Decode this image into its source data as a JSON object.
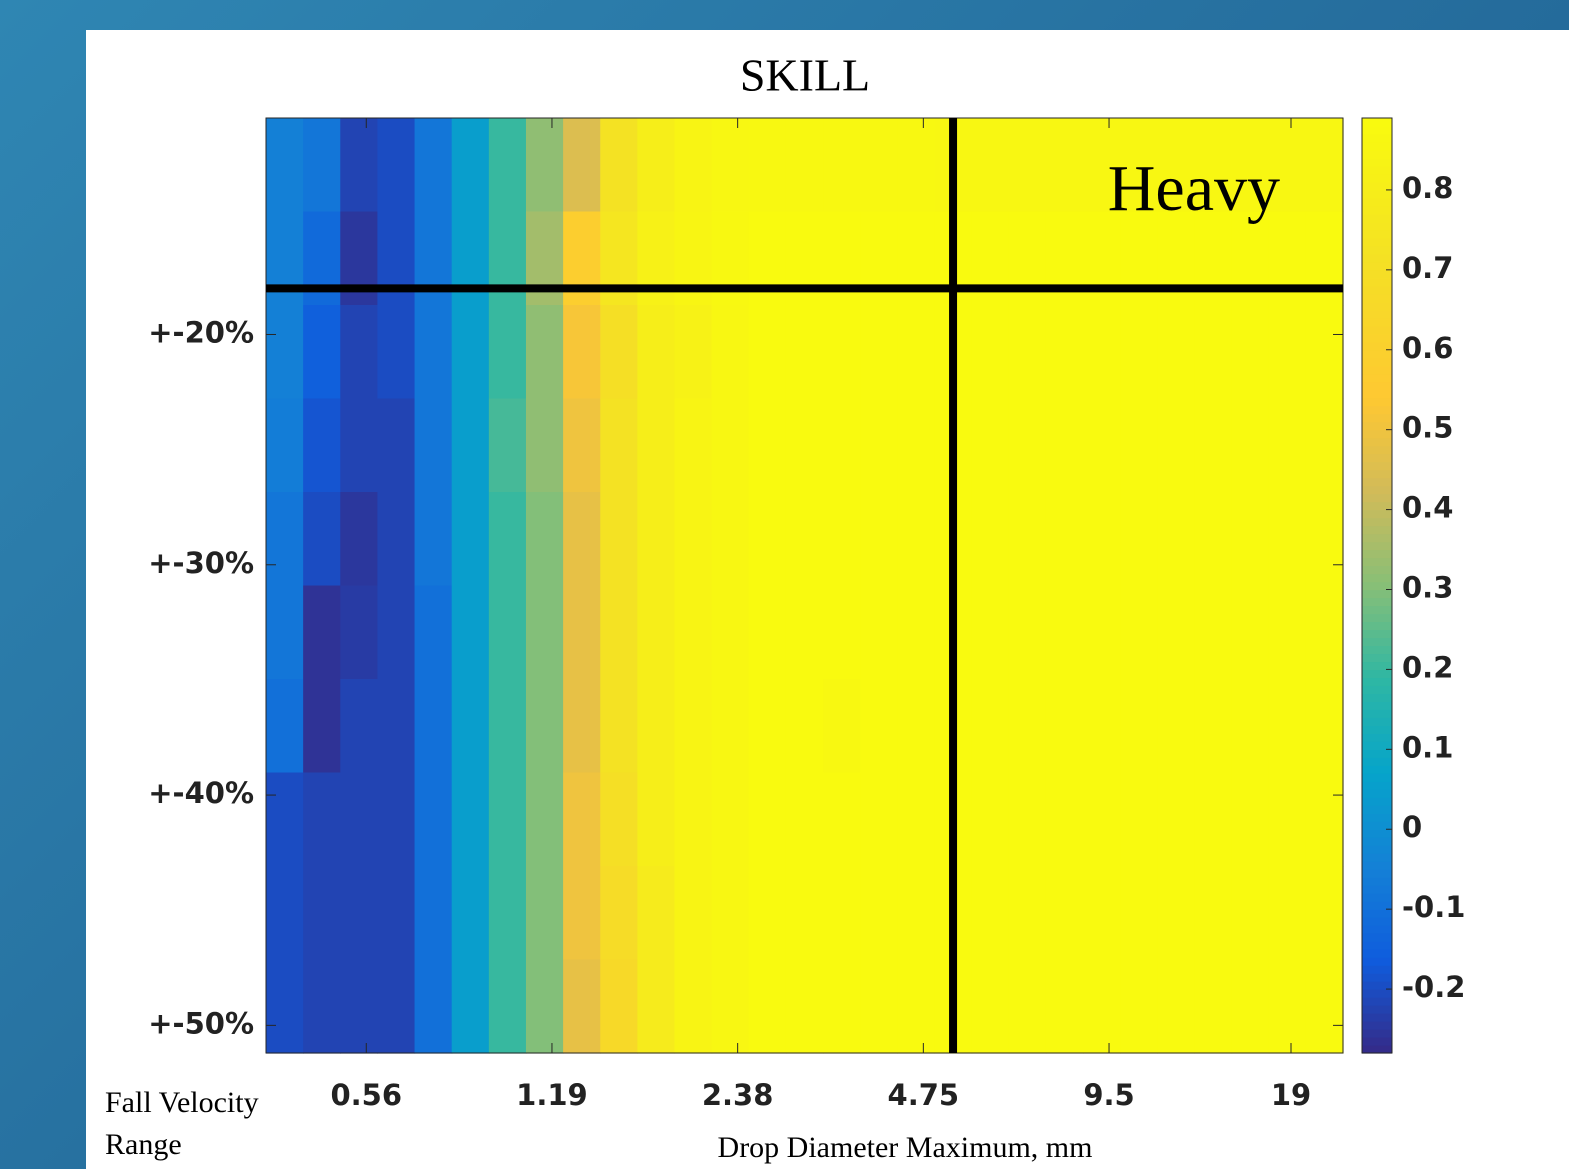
{
  "chart_data": {
    "type": "heatmap",
    "title": "SKILL",
    "annotation": "Heavy",
    "y_label": "Fall Velocity Range",
    "x_label": "Drop Diameter Maximum, mm",
    "colormap": "parula",
    "x": [
      1,
      2,
      3,
      4,
      5,
      6,
      7,
      8,
      9,
      10,
      11,
      12,
      13,
      14,
      15,
      16,
      17,
      18,
      19,
      20,
      21,
      22,
      23,
      24,
      25,
      26,
      27,
      28,
      29
    ],
    "y": [
      12.63,
      16.69,
      20.75,
      24.81,
      28.87,
      32.93,
      36.99,
      41.05,
      45.11,
      49.17
    ],
    "z": [
      [
        -0.05,
        -0.08,
        -0.22,
        -0.2,
        -0.08,
        0.05,
        0.2,
        0.32,
        0.45,
        0.72,
        0.8,
        0.84,
        0.86,
        0.87,
        0.87,
        0.87,
        0.87,
        0.87,
        0.86,
        0.86,
        0.86,
        0.86,
        0.86,
        0.86,
        0.86,
        0.86,
        0.86,
        0.86,
        0.86
      ],
      [
        -0.05,
        -0.12,
        -0.25,
        -0.2,
        -0.08,
        0.05,
        0.2,
        0.35,
        0.58,
        0.75,
        0.82,
        0.85,
        0.87,
        0.88,
        0.88,
        0.88,
        0.88,
        0.88,
        0.88,
        0.88,
        0.88,
        0.88,
        0.88,
        0.88,
        0.88,
        0.88,
        0.88,
        0.88,
        0.88
      ],
      [
        -0.05,
        -0.15,
        -0.22,
        -0.2,
        -0.08,
        0.05,
        0.2,
        0.32,
        0.52,
        0.7,
        0.8,
        0.83,
        0.86,
        0.88,
        0.88,
        0.88,
        0.88,
        0.88,
        0.88,
        0.88,
        0.88,
        0.88,
        0.88,
        0.88,
        0.88,
        0.88,
        0.88,
        0.88,
        0.88
      ],
      [
        -0.06,
        -0.18,
        -0.22,
        -0.22,
        -0.08,
        0.05,
        0.22,
        0.32,
        0.5,
        0.72,
        0.8,
        0.84,
        0.86,
        0.88,
        0.88,
        0.88,
        0.88,
        0.88,
        0.88,
        0.88,
        0.88,
        0.88,
        0.88,
        0.88,
        0.88,
        0.88,
        0.88,
        0.88,
        0.88
      ],
      [
        -0.08,
        -0.2,
        -0.25,
        -0.22,
        -0.08,
        0.05,
        0.2,
        0.3,
        0.48,
        0.72,
        0.8,
        0.84,
        0.86,
        0.88,
        0.88,
        0.88,
        0.88,
        0.88,
        0.88,
        0.88,
        0.88,
        0.88,
        0.88,
        0.88,
        0.88,
        0.88,
        0.88,
        0.88,
        0.88
      ],
      [
        -0.08,
        -0.26,
        -0.24,
        -0.22,
        -0.1,
        0.05,
        0.2,
        0.3,
        0.48,
        0.72,
        0.8,
        0.84,
        0.86,
        0.88,
        0.88,
        0.88,
        0.88,
        0.88,
        0.88,
        0.88,
        0.88,
        0.88,
        0.88,
        0.88,
        0.88,
        0.88,
        0.88,
        0.88,
        0.88
      ],
      [
        -0.1,
        -0.26,
        -0.22,
        -0.22,
        -0.1,
        0.05,
        0.2,
        0.3,
        0.48,
        0.72,
        0.8,
        0.84,
        0.86,
        0.88,
        0.88,
        0.87,
        0.88,
        0.88,
        0.88,
        0.88,
        0.88,
        0.88,
        0.88,
        0.88,
        0.88,
        0.88,
        0.88,
        0.88,
        0.88
      ],
      [
        -0.2,
        -0.22,
        -0.22,
        -0.22,
        -0.1,
        0.05,
        0.2,
        0.3,
        0.5,
        0.7,
        0.8,
        0.84,
        0.86,
        0.88,
        0.88,
        0.88,
        0.88,
        0.88,
        0.88,
        0.88,
        0.88,
        0.88,
        0.88,
        0.88,
        0.88,
        0.88,
        0.88,
        0.88,
        0.88
      ],
      [
        -0.2,
        -0.22,
        -0.22,
        -0.22,
        -0.1,
        0.05,
        0.2,
        0.3,
        0.5,
        0.68,
        0.78,
        0.84,
        0.86,
        0.88,
        0.88,
        0.88,
        0.88,
        0.88,
        0.88,
        0.88,
        0.88,
        0.88,
        0.88,
        0.88,
        0.88,
        0.88,
        0.88,
        0.88,
        0.88
      ],
      [
        -0.2,
        -0.22,
        -0.22,
        -0.22,
        -0.1,
        0.05,
        0.2,
        0.3,
        0.48,
        0.66,
        0.78,
        0.84,
        0.86,
        0.88,
        0.88,
        0.88,
        0.88,
        0.88,
        0.88,
        0.88,
        0.88,
        0.88,
        0.88,
        0.88,
        0.88,
        0.88,
        0.88,
        0.88,
        0.88
      ]
    ],
    "xlim": [
      0.5,
      29.5
    ],
    "ylim": [
      10.6,
      51.2
    ],
    "clim": [
      -0.28,
      0.89
    ],
    "xticks": [
      {
        "value": 3.2,
        "label": "0.56"
      },
      {
        "value": 8.2,
        "label": "1.19"
      },
      {
        "value": 13.2,
        "label": "2.38"
      },
      {
        "value": 18.2,
        "label": "4.75"
      },
      {
        "value": 23.2,
        "label": "9.5"
      },
      {
        "value": 28.1,
        "label": "19"
      }
    ],
    "yticks": [
      {
        "value": 20,
        "label": "+-20%"
      },
      {
        "value": 30,
        "label": "+-30%"
      },
      {
        "value": 40,
        "label": "+-40%"
      },
      {
        "value": 50,
        "label": "+-50%"
      }
    ],
    "cticks": [
      -0.2,
      -0.1,
      0,
      0.1,
      0.2,
      0.3,
      0.4,
      0.5,
      0.6,
      0.7,
      0.8
    ],
    "reference_lines": {
      "x": 19,
      "y": 18,
      "color": "#000000"
    }
  }
}
